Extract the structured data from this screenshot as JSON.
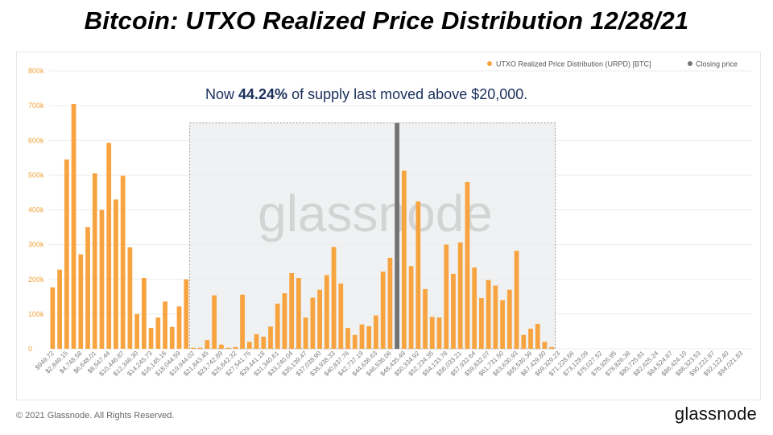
{
  "title": "Bitcoin: UTXO Realized Price Distribution 12/28/21",
  "footer": {
    "copyright": "© 2021 Glassnode. All Rights Reserved.",
    "logo": "glassnode"
  },
  "annotation": {
    "prefix": "Now ",
    "highlight": "44.24%",
    "suffix": " of supply last moved above $20,000."
  },
  "watermark": "glassnode",
  "colors": {
    "bar": "#f7a440",
    "closing": "#737373",
    "grid": "#ececec",
    "axis_text": "#f2a33a",
    "xtick": "#7a7a7a",
    "highlight_text": "#1a2f5c",
    "shade": "#ebeced"
  },
  "chart_data": {
    "type": "bar",
    "title": "",
    "xlabel": "",
    "ylabel": "",
    "ylim": [
      0,
      800000
    ],
    "yticks": [
      0,
      100000,
      200000,
      300000,
      400000,
      500000,
      600000,
      700000,
      800000
    ],
    "ytick_labels": [
      "0",
      "100k",
      "200k",
      "300k",
      "400k",
      "500k",
      "600k",
      "700k",
      "800k"
    ],
    "grid": true,
    "legend_position": "top-right",
    "legend": [
      {
        "label": "UTXO Realized Price Distribution (URPD) [BTC]",
        "color": "#f7a440"
      },
      {
        "label": "Closing price",
        "color": "#737373"
      }
    ],
    "xtick_labels": [
      "$949.72",
      "$2,849.15",
      "$4,748.58",
      "$6,648.01",
      "$8,547.44",
      "$10,446.87",
      "$12,346.30",
      "$14,245.73",
      "$16,145.16",
      "$18,044.59",
      "$19,944.02",
      "$21,843.45",
      "$23,742.89",
      "$25,642.32",
      "$27,541.75",
      "$29,441.18",
      "$31,340.61",
      "$33,240.04",
      "$35,139.47",
      "$37,038.90",
      "$38,938.33",
      "$40,837.76",
      "$42,737.19",
      "$44,636.63",
      "$46,536.06",
      "$48,435.49",
      "$50,334.92",
      "$52,234.35",
      "$54,133.78",
      "$56,033.21",
      "$57,932.64",
      "$59,832.07",
      "$61,731.50",
      "$63,630.93",
      "$65,530.36",
      "$67,429.80",
      "$69,329.23",
      "$71,228.66",
      "$73,128.09",
      "$75,027.52",
      "$76,926.95",
      "$78,826.38",
      "$80,725.81",
      "$82,625.24",
      "$84,524.67",
      "$86,424.10",
      "$88,323.53",
      "$90,222.97",
      "$92,122.40",
      "$94,021.83"
    ],
    "series": [
      {
        "name": "UTXO Realized Price Distribution (URPD) [BTC]",
        "values": [
          177000,
          228000,
          545000,
          705000,
          272000,
          350000,
          505000,
          400000,
          593000,
          430000,
          498000,
          292000,
          100000,
          204000,
          60000,
          90000,
          136000,
          63000,
          122000,
          200000,
          3000,
          3000,
          25000,
          154000,
          12000,
          3000,
          5000,
          156000,
          20000,
          42000,
          35000,
          64000,
          130000,
          160000,
          218000,
          204000,
          90000,
          147000,
          170000,
          212000,
          293000,
          188000,
          60000,
          40000,
          70000,
          65000,
          96000,
          222000,
          262000,
          0,
          513000,
          238000,
          424000,
          172000,
          92000,
          90000,
          300000,
          216000,
          306000,
          480000,
          234000,
          146000,
          198000,
          182000,
          140000,
          170000,
          282000,
          40000,
          58000,
          72000,
          20000,
          5000,
          0,
          0,
          0,
          0,
          0,
          0,
          0,
          0,
          0,
          0,
          0,
          0,
          0,
          0,
          0,
          0,
          0,
          0,
          0,
          0,
          0,
          0,
          0,
          0,
          0,
          0,
          0,
          0
        ]
      }
    ],
    "closing_price": {
      "label": "Closing price",
      "bin_index": 49,
      "value": 650000
    },
    "highlight_region": {
      "from_bin": 20,
      "to_bin": 72,
      "label": "above $20,000"
    }
  }
}
